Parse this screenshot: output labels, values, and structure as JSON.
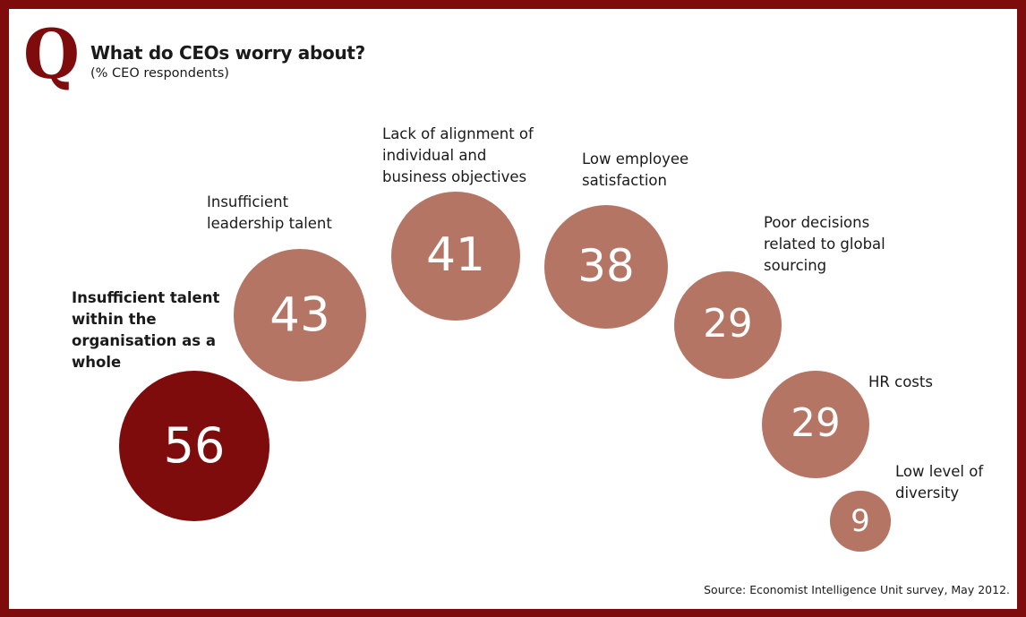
{
  "logo_letter": "Q",
  "colors": {
    "frame": "#7f0c0c",
    "highlight": "#7f0c0c",
    "bubble": "#b57565",
    "text": "#1a1a1a"
  },
  "chart_data": {
    "type": "bubble",
    "title": "What do CEOs worry about?",
    "subtitle": "(% CEO respondents)",
    "categories": [
      "Insufficient talent within the organisation as a whole",
      "Insufficient leadership talent",
      "Lack of alignment of individual and business objectives",
      "Low employee satisfaction",
      "Poor decisions related to global sourcing",
      "HR costs",
      "Low level of diversity"
    ],
    "values": [
      56,
      43,
      41,
      38,
      29,
      29,
      9
    ],
    "highlighted": "Insufficient talent within the organisation as a whole"
  },
  "source": "Source: Economist Intelligence Unit survey, May 2012."
}
